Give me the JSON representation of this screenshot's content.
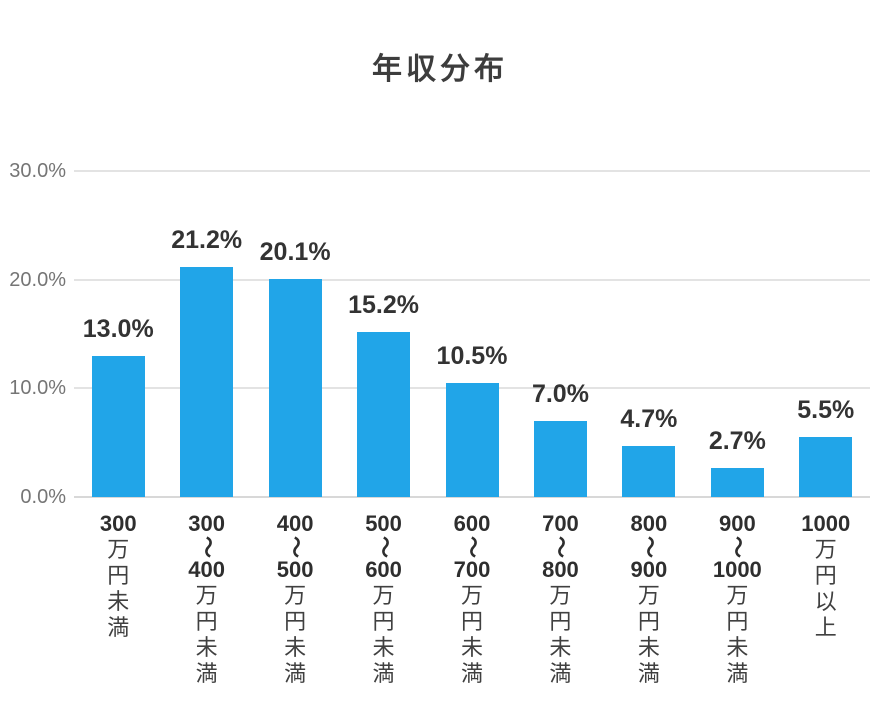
{
  "title": "年収分布",
  "chart_data": {
    "type": "bar",
    "title": "年収分布",
    "categories": [
      "300万円未満",
      "300〜400万円未満",
      "400〜500万円未満",
      "500〜600万円未満",
      "600〜700万円未満",
      "700〜800万円未満",
      "800〜900万円未満",
      "900〜1000万円未満",
      "1000万円以上"
    ],
    "category_segments": [
      [
        "300",
        "万",
        "円",
        "未",
        "満"
      ],
      [
        "300",
        "〜",
        "400",
        "万",
        "円",
        "未",
        "満"
      ],
      [
        "400",
        "〜",
        "500",
        "万",
        "円",
        "未",
        "満"
      ],
      [
        "500",
        "〜",
        "600",
        "万",
        "円",
        "未",
        "満"
      ],
      [
        "600",
        "〜",
        "700",
        "万",
        "円",
        "未",
        "満"
      ],
      [
        "700",
        "〜",
        "800",
        "万",
        "円",
        "未",
        "満"
      ],
      [
        "800",
        "〜",
        "900",
        "万",
        "円",
        "未",
        "満"
      ],
      [
        "900",
        "〜",
        "1000",
        "万",
        "円",
        "未",
        "満"
      ],
      [
        "1000",
        "万",
        "円",
        "以",
        "上"
      ]
    ],
    "values": [
      13.0,
      21.2,
      20.1,
      15.2,
      10.5,
      7.0,
      4.7,
      2.7,
      5.5
    ],
    "data_labels": [
      "13.0%",
      "21.2%",
      "20.1%",
      "15.2%",
      "10.5%",
      "7.0%",
      "4.7%",
      "2.7%",
      "5.5%"
    ],
    "xlabel": "",
    "ylabel": "",
    "ylim": [
      0,
      30
    ],
    "yticks": [
      {
        "label": "0.0%",
        "value": 0
      },
      {
        "label": "10.0%",
        "value": 10
      },
      {
        "label": "20.0%",
        "value": 20
      },
      {
        "label": "30.0%",
        "value": 30
      }
    ],
    "grid": true,
    "legend": "none"
  },
  "colors": {
    "bar": "#21a5e8",
    "gridline": "#e3e3e3",
    "baseline": "#d8d8d8",
    "title_text": "#3d3d3d",
    "data_label": "#333333",
    "y_tick": "#757575",
    "x_label_num": "#2e2e2e",
    "x_label_kanji": "#404040"
  }
}
